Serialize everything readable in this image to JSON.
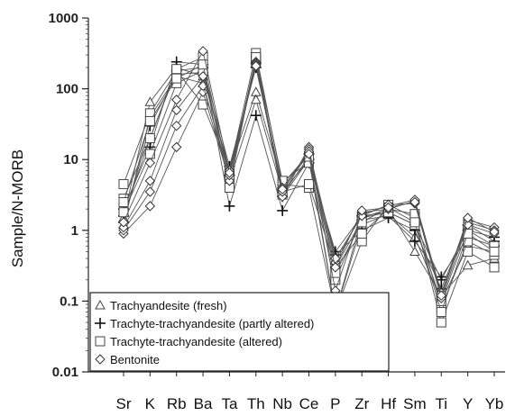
{
  "chart_data": {
    "type": "line",
    "title": "",
    "xlabel": "",
    "ylabel": "Sample/N-MORB",
    "y_scale": "log",
    "ylim": [
      0.01,
      1000
    ],
    "y_ticks": [
      "0.01",
      "0.1",
      "1",
      "10",
      "100",
      "1000"
    ],
    "grid": false,
    "legend_position": "bottom-left",
    "categories": [
      "Sr",
      "K",
      "Rb",
      "Ba",
      "Ta",
      "Th",
      "Nb",
      "Ce",
      "P",
      "Zr",
      "Hf",
      "Sm",
      "Ti",
      "Y",
      "Yb"
    ],
    "series": [
      {
        "name": "Trachyandesite (fresh)",
        "marker": "triangle",
        "samples": [
          [
            1.5,
            65,
            200,
            150,
            7,
            90,
            4.5,
            12,
            0.07,
            1.5,
            2.0,
            0.5,
            0.12,
            0.32,
            0.4
          ],
          [
            1.2,
            40,
            150,
            120,
            5,
            70,
            3.5,
            10,
            0.07,
            1.2,
            1.7,
            0.8,
            0.1,
            0.6,
            0.5
          ]
        ]
      },
      {
        "name": "Trachyte-trachyandesite  (partly altered)",
        "marker": "plus",
        "samples": [
          [
            2.0,
            15,
            240,
            220,
            2.2,
            42,
            1.9,
            9,
            0.5,
            1.6,
            1.8,
            1.2,
            0.2,
            1.0,
            0.8
          ],
          [
            1.6,
            20,
            180,
            200,
            8,
            200,
            3.8,
            12,
            0.3,
            1.4,
            1.6,
            0.7,
            0.22,
            0.8,
            0.6
          ],
          [
            1.3,
            30,
            160,
            170,
            6,
            230,
            3.0,
            10,
            0.45,
            1.0,
            1.5,
            1.0,
            0.15,
            1.2,
            0.7
          ]
        ]
      },
      {
        "name": "Trachyte-trachyandesite  (altered)",
        "marker": "square",
        "samples": [
          [
            4.5,
            45,
            180,
            60,
            7,
            320,
            4.5,
            4.0,
            0.07,
            0.7,
            2.3,
            1.5,
            0.05,
            0.5,
            0.3
          ],
          [
            2.8,
            20,
            190,
            280,
            5,
            250,
            3.5,
            4.5,
            0.3,
            0.9,
            2.0,
            1.7,
            0.08,
            0.7,
            0.45
          ],
          [
            1.8,
            12,
            120,
            180,
            6,
            270,
            5.0,
            9,
            0.2,
            1.5,
            1.8,
            1.2,
            0.1,
            1.0,
            0.6
          ],
          [
            2.5,
            35,
            140,
            220,
            4,
            280,
            3.2,
            11,
            0.25,
            1.3,
            2.1,
            1.3,
            0.07,
            0.9,
            0.5
          ]
        ]
      },
      {
        "name": "Bentonite",
        "marker": "diamond",
        "samples": [
          [
            0.9,
            2.2,
            15,
            90,
            5,
            240,
            3.0,
            15,
            0.14,
            1.8,
            2.0,
            2.6,
            0.12,
            1.4,
            1.1
          ],
          [
            1.0,
            3.5,
            30,
            110,
            6,
            230,
            3.5,
            14,
            0.35,
            1.7,
            2.2,
            2.7,
            0.13,
            1.3,
            1.0
          ],
          [
            1.1,
            5,
            50,
            150,
            7,
            220,
            4.0,
            13,
            0.4,
            1.6,
            2.3,
            2.4,
            0.11,
            1.2,
            0.9
          ],
          [
            1.3,
            9,
            70,
            340,
            6.5,
            210,
            3.8,
            12,
            0.3,
            1.9,
            2.1,
            2.5,
            0.12,
            1.5,
            0.95
          ]
        ]
      }
    ]
  }
}
